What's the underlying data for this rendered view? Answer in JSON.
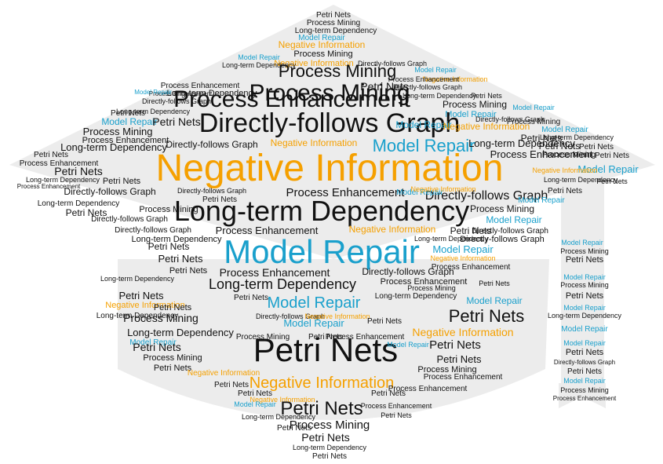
{
  "palette": {
    "background": "#ffffff",
    "shape": "#ececec",
    "dark": "#111111",
    "orange": "#f5a000",
    "blue": "#1aa0cc"
  },
  "words": {
    "negative_information": "Negative Information",
    "directly_follows_graph": "Directly-follows Graph",
    "long_term_dependency": "Long-term Dependency",
    "model_repair": "Model Repair",
    "process_enhancement": "Process Enhancement",
    "process_mining": "Process Mining",
    "petri_nets": "Petri Nets"
  }
}
